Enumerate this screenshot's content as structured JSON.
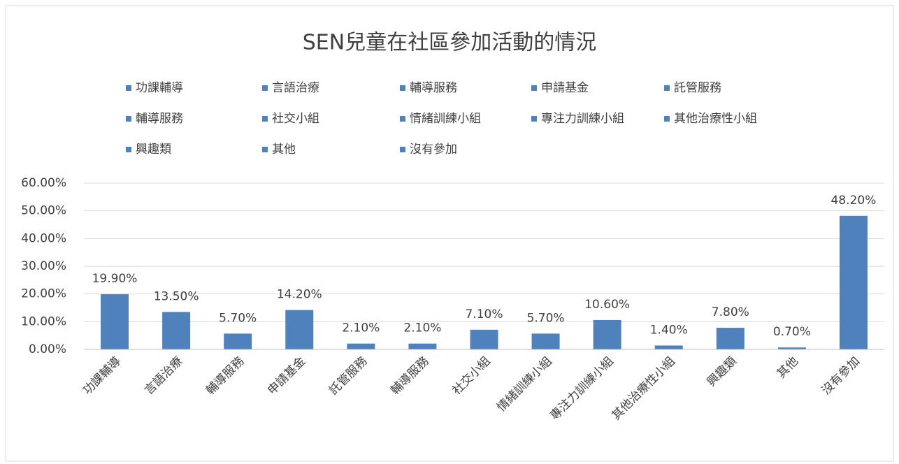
{
  "chart_data": {
    "type": "bar",
    "title": "SEN兒童在社區參加活動的情況",
    "categories": [
      "功課輔導",
      "言語治療",
      "輔導服務",
      "申請基金",
      "託管服務",
      "輔導服務",
      "社交小組",
      "情緒訓練小組",
      "專注力訓練小組",
      "其他治療性小組",
      "興趣類",
      "其他",
      "沒有參加"
    ],
    "values": [
      19.9,
      13.5,
      5.7,
      14.2,
      2.1,
      2.1,
      7.1,
      5.7,
      10.6,
      1.4,
      7.8,
      0.7,
      48.2
    ],
    "value_labels": [
      "19.90%",
      "13.50%",
      "5.70%",
      "14.20%",
      "2.10%",
      "2.10%",
      "7.10%",
      "5.70%",
      "10.60%",
      "1.40%",
      "7.80%",
      "0.70%",
      "48.20%"
    ],
    "color": "#4f81bd",
    "ylim": [
      0,
      60
    ],
    "yticks": [
      {
        "value": 0,
        "label": "0.00%"
      },
      {
        "value": 10,
        "label": "10.00%"
      },
      {
        "value": 20,
        "label": "20.00%"
      },
      {
        "value": 30,
        "label": "30.00%"
      },
      {
        "value": 40,
        "label": "40.00%"
      },
      {
        "value": 50,
        "label": "50.00%"
      },
      {
        "value": 60,
        "label": "60.00%"
      }
    ],
    "grid": true,
    "legend": "top"
  }
}
